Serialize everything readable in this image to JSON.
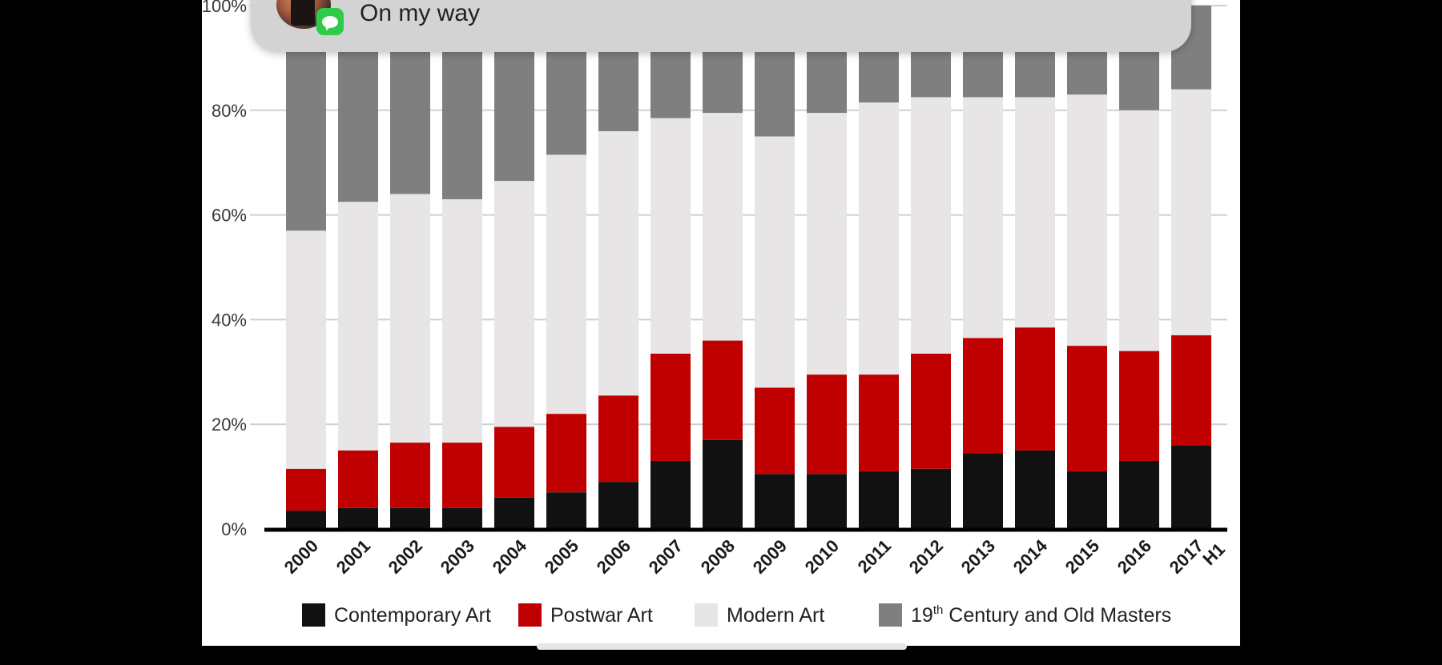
{
  "notification": {
    "message": "On my way",
    "app_icon": "messages-icon"
  },
  "chart_data": {
    "type": "bar",
    "stacked": true,
    "title": "",
    "xlabel": "",
    "ylabel": "",
    "ylim": [
      0,
      100
    ],
    "y_ticks": [
      "0%",
      "20%",
      "40%",
      "60%",
      "80%",
      "100%"
    ],
    "y_tick_values": [
      0,
      20,
      40,
      60,
      80,
      100
    ],
    "categories": [
      "2000",
      "2001",
      "2002",
      "2003",
      "2004",
      "2005",
      "2006",
      "2007",
      "2008",
      "2009",
      "2010",
      "2011",
      "2012",
      "2013",
      "2014",
      "2015",
      "2016",
      "2017 H1"
    ],
    "series": [
      {
        "name": "Contemporary Art",
        "color": "#111111",
        "values": [
          3.5,
          4,
          4,
          4,
          6,
          7,
          9,
          13,
          17,
          10.5,
          10.5,
          11,
          11.5,
          14.5,
          15,
          11,
          13,
          16
        ]
      },
      {
        "name": "Postwar Art",
        "color": "#c00000",
        "values": [
          8,
          11,
          12.5,
          12.5,
          13.5,
          15,
          16.5,
          20.5,
          19,
          16.5,
          19,
          18.5,
          22,
          22,
          23.5,
          24,
          21,
          21
        ]
      },
      {
        "name": "Modern  Art",
        "color": "#e7e5e6",
        "values": [
          45.5,
          47.5,
          47.5,
          46.5,
          47,
          49.5,
          50.5,
          45,
          43.5,
          48,
          50,
          52,
          49,
          46,
          44,
          48,
          46,
          47
        ]
      },
      {
        "name": "19th Century and Old Masters",
        "color": "#7f7f7f",
        "values": [
          43,
          37.5,
          36,
          37,
          33.5,
          28.5,
          24,
          21.5,
          20.5,
          25,
          20.5,
          18.5,
          17.5,
          17.5,
          17.5,
          17,
          20,
          16
        ]
      }
    ],
    "legend": [
      {
        "label": "Contemporary Art",
        "color": "#111111"
      },
      {
        "label": "Postwar Art",
        "color": "#c00000"
      },
      {
        "label": "Modern  Art",
        "color": "#e7e5e6"
      },
      {
        "label_main": "19",
        "label_sup": "th",
        "label_rest": " Century and Old Masters",
        "color": "#7f7f7f"
      }
    ],
    "legend_position": "bottom"
  }
}
